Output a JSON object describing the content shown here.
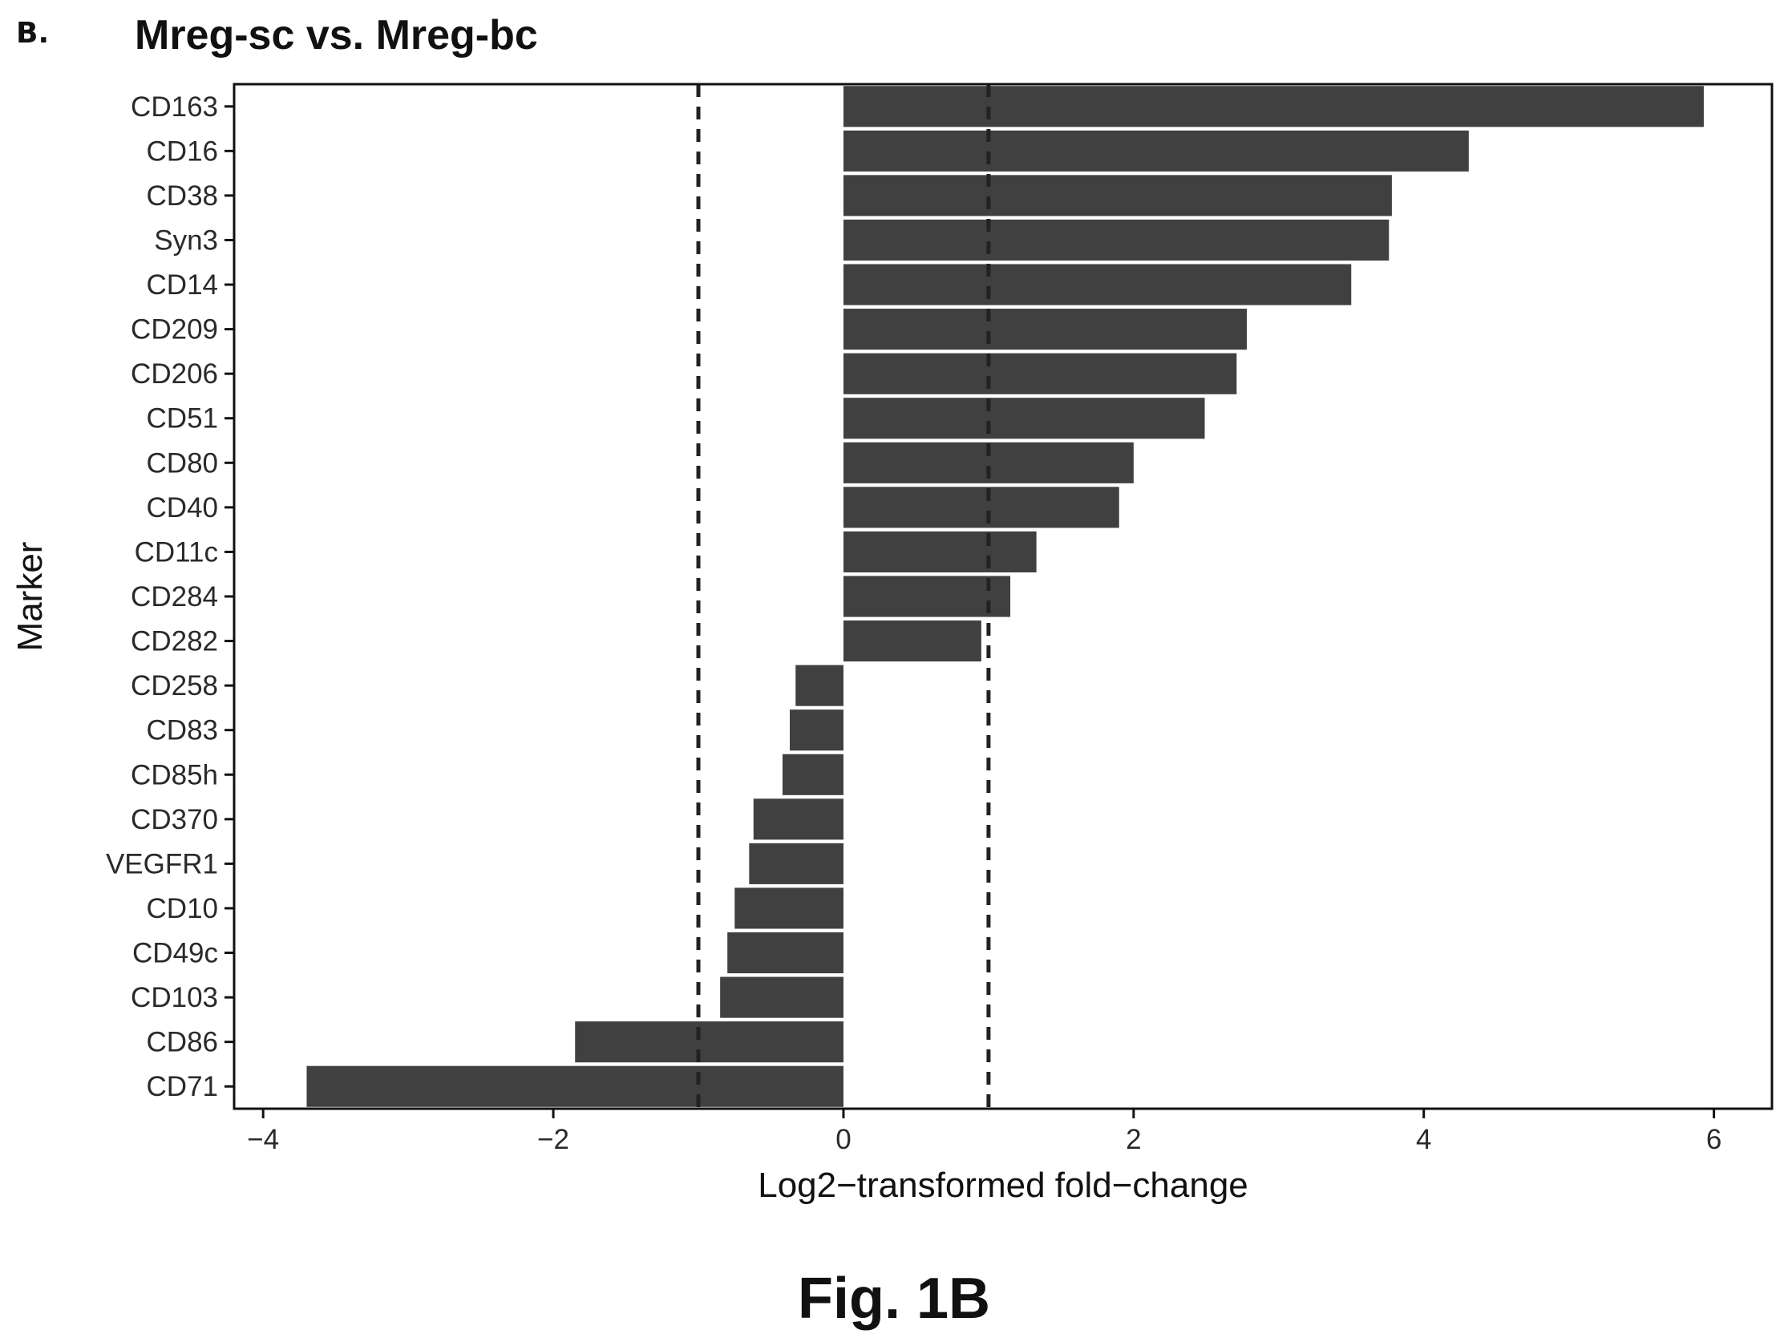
{
  "figure": {
    "panel_letter": "B.",
    "caption": "Fig. 1B"
  },
  "chart_data": {
    "type": "bar",
    "orientation": "horizontal",
    "title": "Mreg-sc vs. Mreg-bc",
    "xlabel": "Log2−transformed fold−change",
    "ylabel": "Marker",
    "xlim": [
      -4.2,
      6.4
    ],
    "x_ticks": [
      -4,
      -2,
      0,
      2,
      4,
      6
    ],
    "x_tick_labels": [
      "−4",
      "−2",
      "0",
      "2",
      "4",
      "6"
    ],
    "reference_lines": [
      -1,
      1
    ],
    "reference_line_style": "dashed",
    "bar_color": "#404040",
    "grid": false,
    "categories": [
      "CD163",
      "CD16",
      "CD38",
      "Syn3",
      "CD14",
      "CD209",
      "CD206",
      "CD51",
      "CD80",
      "CD40",
      "CD11c",
      "CD284",
      "CD282",
      "CD258",
      "CD83",
      "CD85h",
      "CD370",
      "VEGFR1",
      "CD10",
      "CD49c",
      "CD103",
      "CD86",
      "CD71"
    ],
    "values": [
      5.93,
      4.31,
      3.78,
      3.76,
      3.5,
      2.78,
      2.71,
      2.49,
      2.0,
      1.9,
      1.33,
      1.15,
      0.95,
      -0.33,
      -0.37,
      -0.42,
      -0.62,
      -0.65,
      -0.75,
      -0.8,
      -0.85,
      -1.85,
      -3.7
    ]
  }
}
